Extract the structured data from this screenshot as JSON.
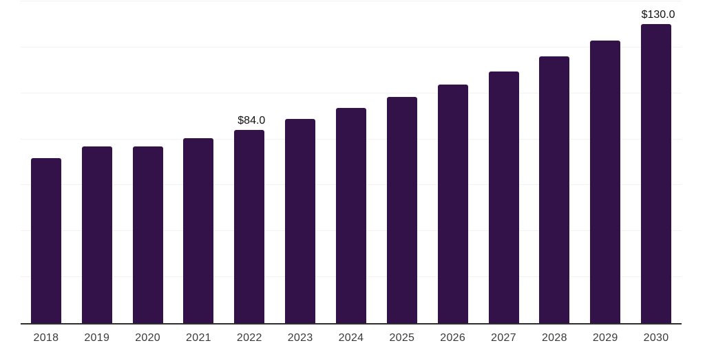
{
  "chart_data": {
    "type": "bar",
    "title": "",
    "xlabel": "",
    "ylabel": "",
    "categories": [
      "2018",
      "2019",
      "2020",
      "2021",
      "2022",
      "2023",
      "2024",
      "2025",
      "2026",
      "2027",
      "2028",
      "2029",
      "2030"
    ],
    "values": [
      71.8,
      76.9,
      76.9,
      80.5,
      84.0,
      88.7,
      93.5,
      98.3,
      103.8,
      109.6,
      116.1,
      123.0,
      130.0
    ],
    "value_prefix": "$",
    "annotations": [
      {
        "index": 4,
        "text": "$84.0"
      },
      {
        "index": 12,
        "text": "$130.0"
      }
    ],
    "ylim": [
      0,
      140
    ],
    "gridline_step": 20,
    "grid": true,
    "legend_position": "none",
    "colors": {
      "bar": "#331249",
      "axis_line": "#2E2E2E",
      "gridline": "#F2F2F4",
      "tick_label": "#3A3A3A",
      "value_label": "#111111",
      "background": "#FFFFFF"
    }
  }
}
